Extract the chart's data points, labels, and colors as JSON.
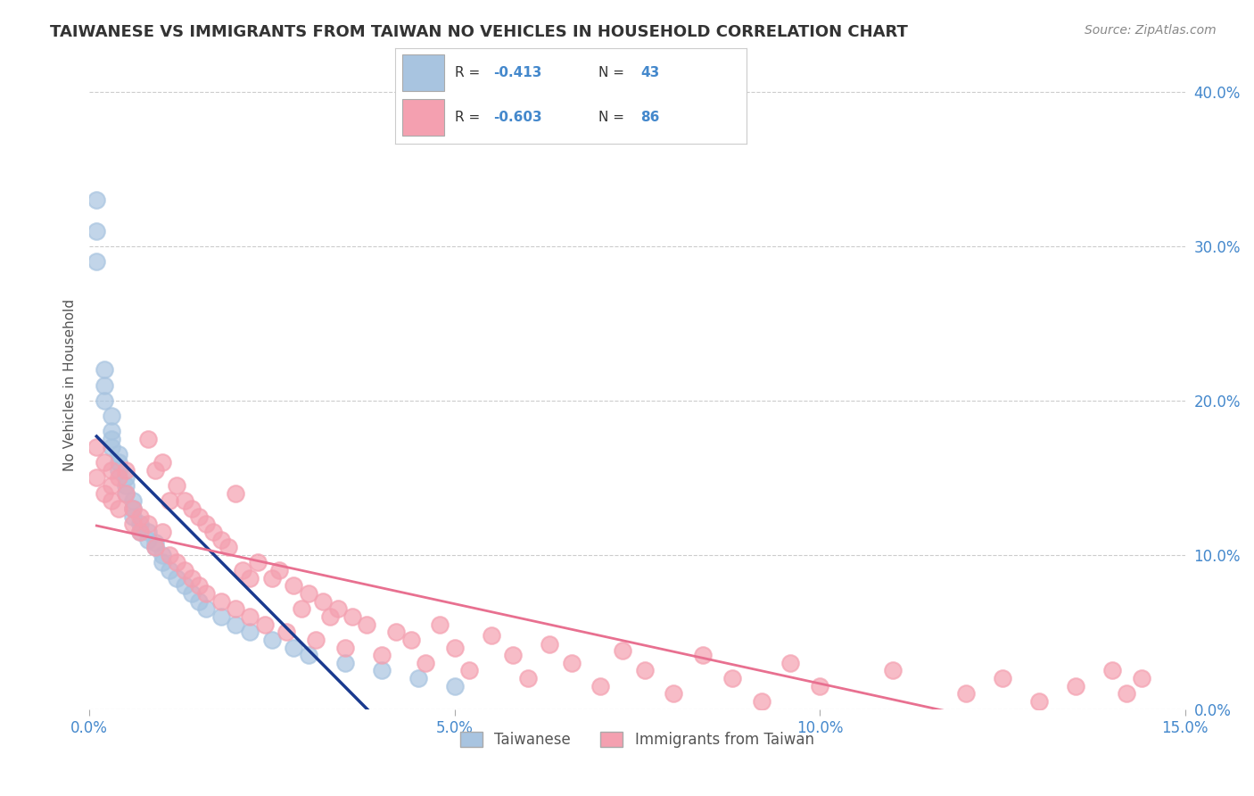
{
  "title": "TAIWANESE VS IMMIGRANTS FROM TAIWAN NO VEHICLES IN HOUSEHOLD CORRELATION CHART",
  "source": "Source: ZipAtlas.com",
  "ylabel": "No Vehicles in Household",
  "xlabel_bottom": "",
  "legend_labels": [
    "Taiwanese",
    "Immigrants from Taiwan"
  ],
  "r_taiwanese": -0.413,
  "n_taiwanese": 43,
  "r_immigrants": -0.603,
  "n_immigrants": 86,
  "color_taiwanese": "#a8c4e0",
  "color_immigrants": "#f4a0b0",
  "color_trendline_taiwanese": "#1a3a8f",
  "color_trendline_immigrants": "#e87090",
  "color_text": "#4488cc",
  "background_color": "#ffffff",
  "xlim": [
    0.0,
    0.15
  ],
  "ylim": [
    0.0,
    0.42
  ],
  "xticks": [
    0.0,
    0.05,
    0.1,
    0.15
  ],
  "xtick_labels": [
    "0.0%",
    "5.0%",
    "10.0%",
    "15.0%"
  ],
  "yticks_right": [
    0.0,
    0.1,
    0.2,
    0.3,
    0.4
  ],
  "ytick_labels_right": [
    "0.0%",
    "10.0%",
    "20.0%",
    "30.0%",
    "40.0%"
  ],
  "taiwanese_x": [
    0.001,
    0.001,
    0.001,
    0.002,
    0.002,
    0.002,
    0.003,
    0.003,
    0.003,
    0.003,
    0.004,
    0.004,
    0.004,
    0.005,
    0.005,
    0.005,
    0.006,
    0.006,
    0.006,
    0.007,
    0.007,
    0.008,
    0.008,
    0.009,
    0.009,
    0.01,
    0.01,
    0.011,
    0.012,
    0.013,
    0.014,
    0.015,
    0.016,
    0.018,
    0.02,
    0.022,
    0.025,
    0.028,
    0.03,
    0.035,
    0.04,
    0.045,
    0.05
  ],
  "taiwanese_y": [
    0.33,
    0.31,
    0.29,
    0.22,
    0.21,
    0.2,
    0.19,
    0.18,
    0.175,
    0.17,
    0.165,
    0.16,
    0.155,
    0.15,
    0.145,
    0.14,
    0.135,
    0.13,
    0.125,
    0.12,
    0.115,
    0.115,
    0.11,
    0.108,
    0.105,
    0.1,
    0.095,
    0.09,
    0.085,
    0.08,
    0.075,
    0.07,
    0.065,
    0.06,
    0.055,
    0.05,
    0.045,
    0.04,
    0.035,
    0.03,
    0.025,
    0.02,
    0.015
  ],
  "immigrants_x": [
    0.001,
    0.001,
    0.002,
    0.002,
    0.003,
    0.003,
    0.003,
    0.004,
    0.004,
    0.005,
    0.005,
    0.006,
    0.006,
    0.007,
    0.007,
    0.008,
    0.008,
    0.009,
    0.009,
    0.01,
    0.01,
    0.011,
    0.011,
    0.012,
    0.012,
    0.013,
    0.013,
    0.014,
    0.014,
    0.015,
    0.015,
    0.016,
    0.016,
    0.017,
    0.018,
    0.018,
    0.019,
    0.02,
    0.02,
    0.021,
    0.022,
    0.022,
    0.023,
    0.024,
    0.025,
    0.026,
    0.027,
    0.028,
    0.029,
    0.03,
    0.031,
    0.032,
    0.033,
    0.034,
    0.035,
    0.036,
    0.038,
    0.04,
    0.042,
    0.044,
    0.046,
    0.048,
    0.05,
    0.052,
    0.055,
    0.058,
    0.06,
    0.063,
    0.066,
    0.07,
    0.073,
    0.076,
    0.08,
    0.084,
    0.088,
    0.092,
    0.096,
    0.1,
    0.11,
    0.12,
    0.125,
    0.13,
    0.135,
    0.14,
    0.142,
    0.144
  ],
  "immigrants_y": [
    0.17,
    0.15,
    0.16,
    0.14,
    0.155,
    0.145,
    0.135,
    0.15,
    0.13,
    0.155,
    0.14,
    0.13,
    0.12,
    0.125,
    0.115,
    0.175,
    0.12,
    0.155,
    0.105,
    0.16,
    0.115,
    0.135,
    0.1,
    0.145,
    0.095,
    0.135,
    0.09,
    0.13,
    0.085,
    0.125,
    0.08,
    0.12,
    0.075,
    0.115,
    0.11,
    0.07,
    0.105,
    0.14,
    0.065,
    0.09,
    0.085,
    0.06,
    0.095,
    0.055,
    0.085,
    0.09,
    0.05,
    0.08,
    0.065,
    0.075,
    0.045,
    0.07,
    0.06,
    0.065,
    0.04,
    0.06,
    0.055,
    0.035,
    0.05,
    0.045,
    0.03,
    0.055,
    0.04,
    0.025,
    0.048,
    0.035,
    0.02,
    0.042,
    0.03,
    0.015,
    0.038,
    0.025,
    0.01,
    0.035,
    0.02,
    0.005,
    0.03,
    0.015,
    0.025,
    0.01,
    0.02,
    0.005,
    0.015,
    0.025,
    0.01,
    0.02
  ]
}
